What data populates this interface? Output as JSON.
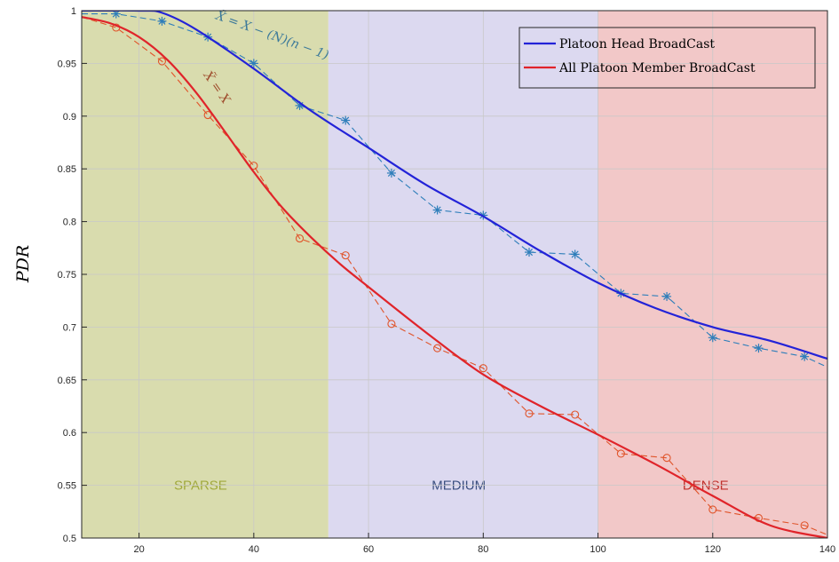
{
  "chart_data": {
    "type": "line",
    "title": "",
    "xlabel": "",
    "ylabel": "PDR",
    "xlim": [
      10,
      140
    ],
    "ylim": [
      0.5,
      1.0
    ],
    "x_ticks": [
      20,
      40,
      60,
      80,
      100,
      120,
      140
    ],
    "y_ticks": [
      0.5,
      0.55,
      0.6,
      0.65,
      0.7,
      0.75,
      0.8,
      0.85,
      0.9,
      0.95,
      1
    ],
    "y_tick_labels": [
      "0.5",
      "0.55",
      "0.6",
      "0.65",
      "0.7",
      "0.75",
      "0.8",
      "0.85",
      "0.9",
      "0.95",
      "1"
    ],
    "grid": true,
    "legend_position": "top-right",
    "regions": [
      {
        "label": "SPARSE",
        "x_range": [
          10,
          53
        ],
        "fill": "#d9dcae",
        "label_color": "#a0a83a"
      },
      {
        "label": "MEDIUM",
        "x_range": [
          53,
          100
        ],
        "fill": "#dcd9f0",
        "label_color": "#3c5080"
      },
      {
        "label": "DENSE",
        "x_range": [
          100,
          140
        ],
        "fill": "#f2c8c8",
        "label_color": "#c0302c"
      }
    ],
    "series": [
      {
        "name": "Platoon Head BroadCast",
        "kind": "fit",
        "color": "#2323d8",
        "x": [
          10,
          20,
          24,
          30,
          40,
          50,
          60,
          70,
          80,
          90,
          100,
          110,
          120,
          130,
          140
        ],
        "y": [
          1.0,
          1.0,
          0.998,
          0.982,
          0.945,
          0.905,
          0.87,
          0.835,
          0.805,
          0.772,
          0.742,
          0.718,
          0.7,
          0.687,
          0.67
        ]
      },
      {
        "name": "",
        "kind": "measured",
        "marker": "star",
        "color": "#2e7eba",
        "x": [
          10,
          16,
          24,
          32,
          40,
          48,
          56,
          64,
          72,
          80,
          88,
          96,
          104,
          112,
          120,
          128,
          136,
          140
        ],
        "y": [
          0.997,
          0.997,
          0.99,
          0.975,
          0.95,
          0.91,
          0.896,
          0.846,
          0.811,
          0.806,
          0.771,
          0.769,
          0.732,
          0.729,
          0.69,
          0.68,
          0.672,
          0.662
        ]
      },
      {
        "name": "All Platoon Member BroadCast",
        "kind": "fit",
        "color": "#e0242a",
        "x": [
          10,
          15,
          20,
          25,
          30,
          35,
          40,
          45,
          50,
          55,
          60,
          70,
          80,
          90,
          100,
          110,
          120,
          130,
          140
        ],
        "y": [
          0.994,
          0.988,
          0.975,
          0.953,
          0.922,
          0.885,
          0.847,
          0.813,
          0.785,
          0.76,
          0.738,
          0.695,
          0.655,
          0.625,
          0.598,
          0.57,
          0.54,
          0.512,
          0.5
        ]
      },
      {
        "name": "",
        "kind": "measured",
        "marker": "circle",
        "color": "#e0542a",
        "x": [
          10,
          16,
          24,
          32,
          40,
          48,
          56,
          64,
          72,
          80,
          88,
          96,
          104,
          112,
          120,
          128,
          136,
          140
        ],
        "y": [
          0.994,
          0.984,
          0.952,
          0.901,
          0.853,
          0.784,
          0.768,
          0.703,
          0.68,
          0.661,
          0.618,
          0.617,
          0.58,
          0.576,
          0.527,
          0.519,
          0.512,
          0.503
        ]
      }
    ],
    "annotations": [
      {
        "text": "X̃ = X − (N)(n − 1)",
        "x": 43,
        "y": 0.973,
        "rotation": 20,
        "color": "#3d7a9a"
      },
      {
        "text": "X̃ = X",
        "x": 33,
        "y": 0.925,
        "rotation": 55,
        "color": "#a05030"
      }
    ]
  }
}
